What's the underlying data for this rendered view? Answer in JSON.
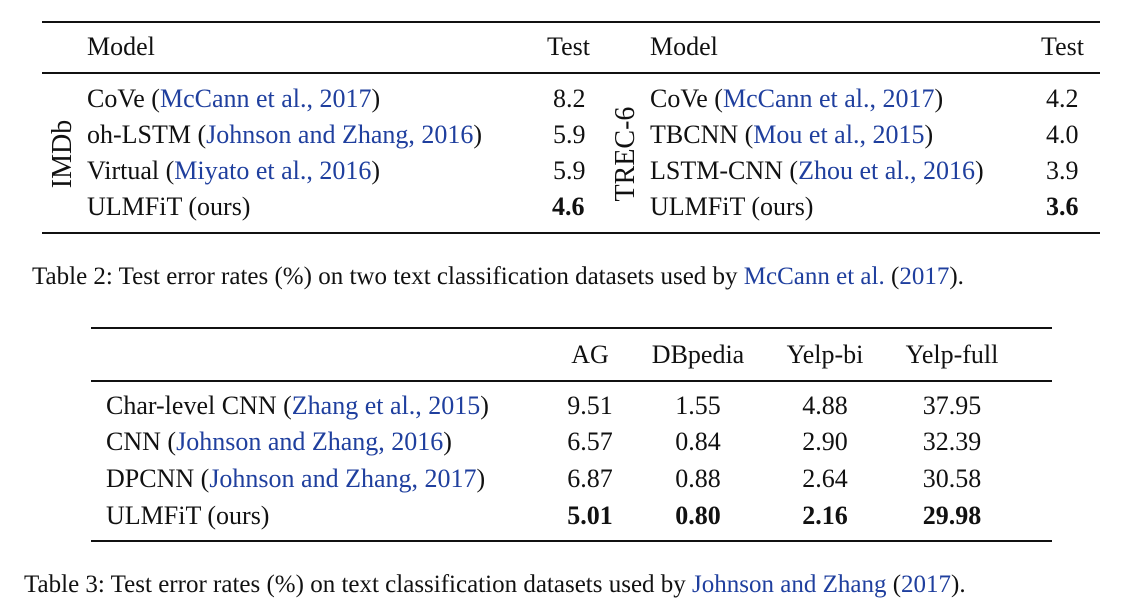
{
  "table2": {
    "caption_prefix": "Table 2: Test error rates (%) on two text classification datasets used by ",
    "caption_cite_author": "McCann et al.",
    "caption_cite_open": " (",
    "caption_cite_year": "2017",
    "caption_cite_close": ").",
    "left": {
      "group_label": "IMDb",
      "col_model": "Model",
      "col_test": "Test",
      "rows": [
        {
          "model": "CoVe ",
          "cite_open": "(",
          "cite": "McCann et al., 2017",
          "cite_close": ")",
          "test": "8.2"
        },
        {
          "model": "oh-LSTM ",
          "cite_open": "(",
          "cite": "Johnson and Zhang, 2016",
          "cite_close": ")",
          "test": "5.9"
        },
        {
          "model": "Virtual ",
          "cite_open": "(",
          "cite": "Miyato et al., 2016",
          "cite_close": ")",
          "test": "5.9"
        },
        {
          "model": "ULMFiT (ours)",
          "test": "4.6"
        }
      ]
    },
    "right": {
      "group_label": "TREC-6",
      "col_model": "Model",
      "col_test": "Test",
      "rows": [
        {
          "model": "CoVe ",
          "cite_open": "(",
          "cite": "McCann et al., 2017",
          "cite_close": ")",
          "test": "4.2"
        },
        {
          "model": "TBCNN ",
          "cite_open": "(",
          "cite": "Mou et al., 2015",
          "cite_close": ")",
          "test": "4.0"
        },
        {
          "model": "LSTM-CNN ",
          "cite_open": "(",
          "cite": "Zhou et al., 2016",
          "cite_close": ")",
          "test": "3.9"
        },
        {
          "model": "ULMFiT (ours)",
          "test": "3.6"
        }
      ]
    }
  },
  "table3": {
    "caption_prefix": "Table 3: Test error rates (%) on text classification datasets used by ",
    "caption_cite_author": "Johnson and Zhang",
    "caption_cite_open": " (",
    "caption_cite_year": "2017",
    "caption_cite_close": ").",
    "columns": [
      "AG",
      "DBpedia",
      "Yelp-bi",
      "Yelp-full"
    ],
    "rows": [
      {
        "model": "Char-level CNN ",
        "cite_open": "(",
        "cite": "Zhang et al., 2015",
        "cite_close": ")",
        "values": [
          "9.51",
          "1.55",
          "4.88",
          "37.95"
        ]
      },
      {
        "model": "CNN ",
        "cite_open": "(",
        "cite": "Johnson and Zhang, 2016",
        "cite_close": ")",
        "values": [
          "6.57",
          "0.84",
          "2.90",
          "32.39"
        ]
      },
      {
        "model": "DPCNN ",
        "cite_open": "(",
        "cite": "Johnson and Zhang, 2017",
        "cite_close": ")",
        "values": [
          "6.87",
          "0.88",
          "2.64",
          "30.58"
        ]
      },
      {
        "model": "ULMFiT (ours)",
        "values": [
          "5.01",
          "0.80",
          "2.16",
          "29.98"
        ]
      }
    ]
  }
}
